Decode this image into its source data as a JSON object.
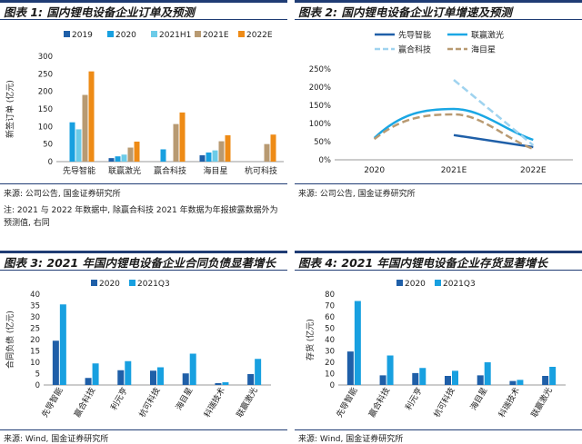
{
  "panels": {
    "p1": {
      "title": "图表 1:  国内锂电设备企业订单及预测",
      "source": "来源: 公司公告, 国金证券研究所"
    },
    "p2": {
      "title": "图表 2:  国内锂电设备企业订单增速及预测",
      "source": "来源: 公司公告, 国金证券研究所"
    },
    "p3": {
      "title": "图表 3:  2021 年国内锂电设备企业合同负债显著增长",
      "source": "来源: Wind, 国金证券研究所"
    },
    "p4": {
      "title": "图表 4:  2021 年国内锂电设备企业存货显著增长",
      "source": "来源: Wind, 国金证券研究所"
    }
  },
  "note": "注: 2021 与 2022 年数据中, 除赢合科技 2021 年数据为年报披露数据外为预测值, 右同",
  "chart_data": [
    {
      "type": "bar",
      "categories": [
        "先导智能",
        "联赢激光",
        "赢合科技",
        "海目星",
        "杭可科技"
      ],
      "series": [
        {
          "name": "2019",
          "color": "#1f5fa8",
          "values": [
            0,
            10,
            0,
            18,
            0
          ]
        },
        {
          "name": "2020",
          "color": "#18a0e0",
          "values": [
            112,
            15,
            35,
            26,
            0
          ]
        },
        {
          "name": "2021H1",
          "color": "#6ccbe8",
          "values": [
            92,
            20,
            0,
            32,
            0
          ]
        },
        {
          "name": "2021E",
          "color": "#b89a72",
          "values": [
            190,
            40,
            107,
            58,
            50
          ]
        },
        {
          "name": "2022E",
          "color": "#ee8b16",
          "values": [
            257,
            57,
            140,
            75,
            77
          ]
        }
      ],
      "ylabel": "新签订单 (亿元)",
      "ylim": [
        0,
        300
      ],
      "yticks": [
        0,
        50,
        100,
        150,
        200,
        250,
        300
      ],
      "legend": "top"
    },
    {
      "type": "line",
      "x": [
        "2020",
        "2021E",
        "2022E"
      ],
      "series": [
        {
          "name": "先导智能",
          "color": "#1f5fa8",
          "dash": "solid",
          "values": [
            null,
            0.68,
            0.35
          ]
        },
        {
          "name": "联赢激光",
          "color": "#1aa7e4",
          "dash": "solid",
          "values": [
            0.6,
            1.4,
            0.55
          ]
        },
        {
          "name": "赢合科技",
          "color": "#9fd3ef",
          "dash": "dash",
          "values": [
            null,
            2.2,
            0.4
          ]
        },
        {
          "name": "海目星",
          "color": "#b89a72",
          "dash": "dash",
          "values": [
            0.57,
            1.25,
            0.3
          ]
        }
      ],
      "ylim": [
        0,
        2.5
      ],
      "yticks": [
        "0%",
        "50%",
        "100%",
        "150%",
        "200%",
        "250%"
      ],
      "legend": "top"
    },
    {
      "type": "bar",
      "categories": [
        "先导智能",
        "赢合科技",
        "利元亨",
        "杭可科技",
        "海目星",
        "科瑞技术",
        "联赢激光"
      ],
      "series": [
        {
          "name": "2020",
          "color": "#1f5fa8",
          "values": [
            19.5,
            3.1,
            6.5,
            6.3,
            5.1,
            0.8,
            4.8
          ]
        },
        {
          "name": "2021Q3",
          "color": "#18a0e0",
          "values": [
            35.5,
            9.5,
            10.5,
            7.8,
            13.8,
            1.2,
            11.5
          ]
        }
      ],
      "ylabel": "合同负债 (亿元)",
      "ylim": [
        0,
        40
      ],
      "yticks": [
        0,
        5,
        10,
        15,
        20,
        25,
        30,
        35,
        40
      ],
      "legend": "top"
    },
    {
      "type": "bar",
      "categories": [
        "先导智能",
        "赢合科技",
        "利元亨",
        "杭可科技",
        "海目星",
        "科瑞技术",
        "联赢激光"
      ],
      "series": [
        {
          "name": "2020",
          "color": "#1f5fa8",
          "values": [
            29.5,
            8.5,
            10.5,
            8,
            8.5,
            3.5,
            8
          ]
        },
        {
          "name": "2021Q3",
          "color": "#18a0e0",
          "values": [
            74,
            26,
            15,
            12.5,
            20,
            4.5,
            16
          ]
        }
      ],
      "ylabel": "存货 (亿元)",
      "ylim": [
        0,
        80
      ],
      "yticks": [
        0,
        10,
        20,
        30,
        40,
        50,
        60,
        70,
        80
      ],
      "legend": "top"
    }
  ]
}
